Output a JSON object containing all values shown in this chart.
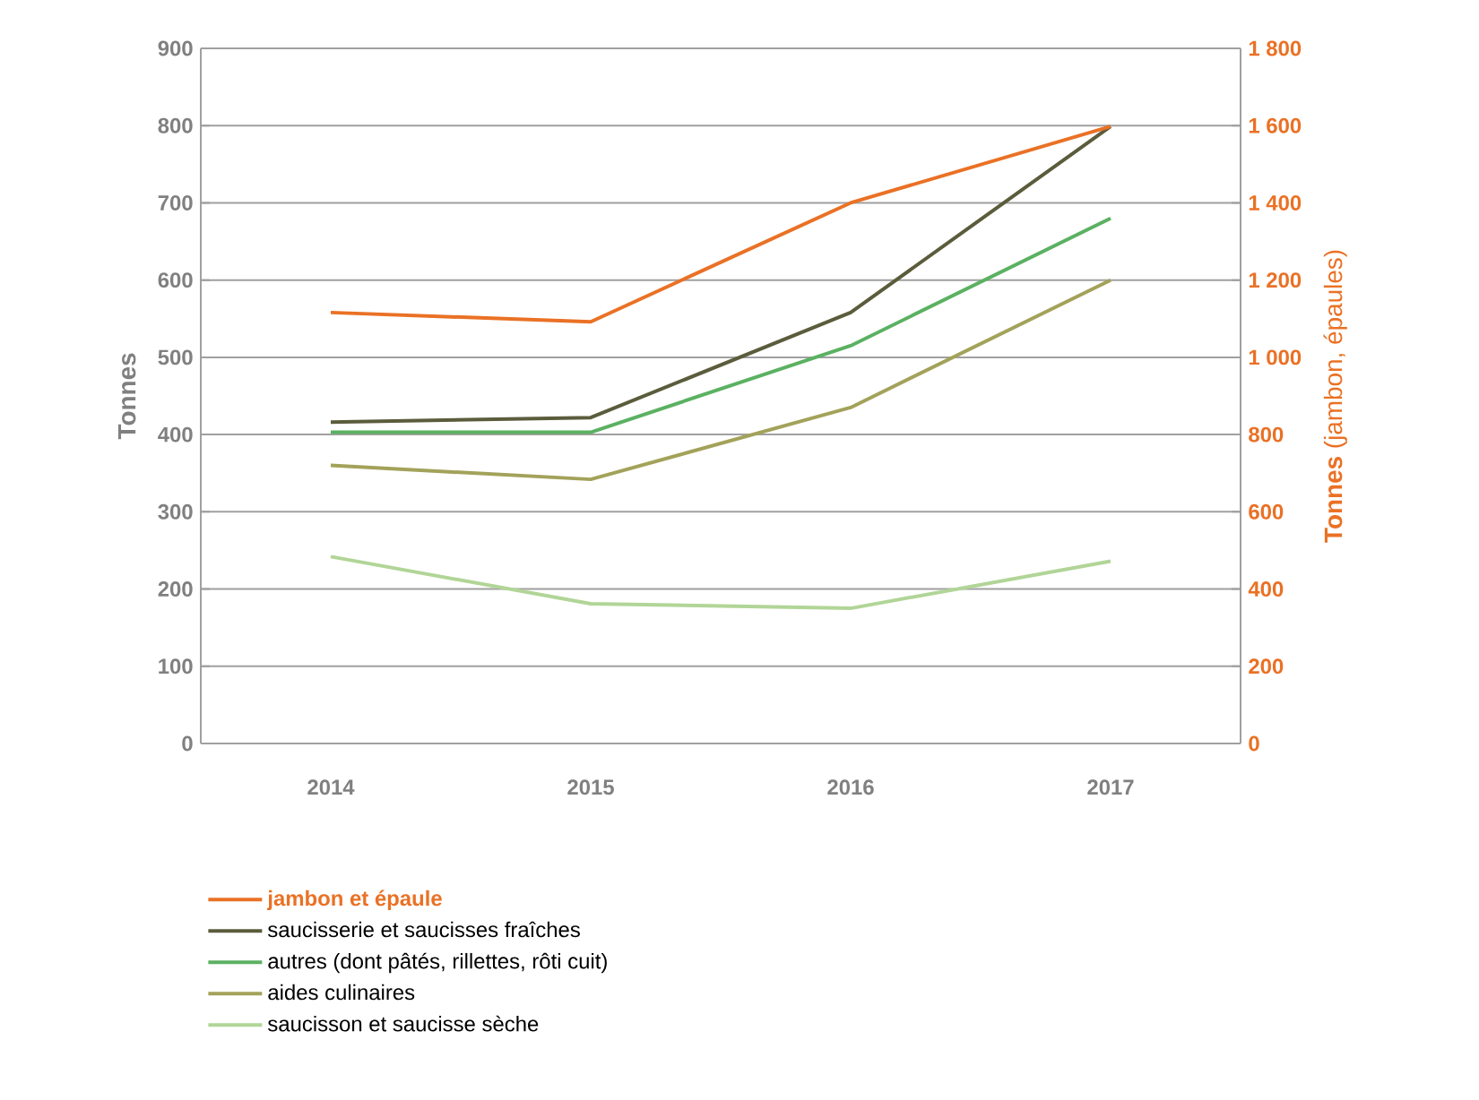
{
  "chart_data": {
    "type": "line",
    "categories": [
      "2014",
      "2015",
      "2016",
      "2017"
    ],
    "ylabel": "Tonnes",
    "y2label": "**Tonnes** (jambon, épaules)",
    "ylim": [
      0,
      900
    ],
    "yticks": [
      0,
      100,
      200,
      300,
      400,
      500,
      600,
      700,
      800,
      900
    ],
    "y2lim": [
      0,
      1800
    ],
    "y2ticks": [
      0,
      200,
      400,
      600,
      800,
      {
        "value": 1000,
        "label": "1 000"
      },
      {
        "value": 1200,
        "label": "1 200"
      },
      {
        "value": 1400,
        "label": "1 400"
      },
      {
        "value": 1600,
        "label": "1 600"
      },
      {
        "value": 1800,
        "label": "1 800"
      }
    ],
    "grid": "y",
    "legend": "bottom",
    "marker": "none",
    "line_style": "solid",
    "series": [
      {
        "name": "jambon et épaule",
        "color": "#ea7125",
        "axis": "y2",
        "values": [
          1116,
          1092,
          1400,
          1598
        ]
      },
      {
        "name": "saucisserie et saucisses fraîches",
        "color": "#5b5c3c",
        "values": [
          416,
          422,
          558,
          799
        ]
      },
      {
        "name": "autres (dont pâtés, rillettes,  rôti cuit)",
        "color": "#5bb162",
        "values": [
          403,
          403,
          515,
          680
        ]
      },
      {
        "name": "aides culinaires",
        "color": "#a3a25a",
        "values": [
          360,
          342,
          435,
          600
        ]
      },
      {
        "name": "saucisson et saucisse sèche",
        "color": "#b1d597",
        "values": [
          242,
          181,
          175,
          236
        ]
      }
    ]
  }
}
